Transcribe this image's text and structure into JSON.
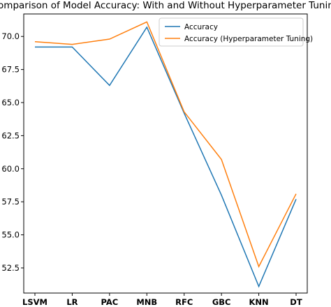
{
  "chart_data": {
    "type": "line",
    "title": "Comparison of Model Accuracy: With and Without Hyperparameter Tuning",
    "xlabel": "",
    "ylabel": "",
    "categories": [
      "LSVM",
      "LR",
      "PAC",
      "MNB",
      "RFC",
      "GBC",
      "KNN",
      "DT"
    ],
    "series": [
      {
        "name": "Accuracy",
        "color": "#1f77b4",
        "values": [
          69.2,
          69.2,
          66.3,
          70.7,
          64.2,
          58.0,
          51.1,
          57.7
        ]
      },
      {
        "name": "Accuracy (Hyperparameter Tuning)",
        "color": "#ff7f0e",
        "values": [
          69.6,
          69.4,
          69.8,
          71.1,
          64.3,
          60.7,
          52.6,
          58.1
        ]
      }
    ],
    "ylim": [
      50.6,
      71.7
    ],
    "yticks": [
      "52.5",
      "55.0",
      "57.5",
      "60.0",
      "62.5",
      "65.0",
      "67.5",
      "70.0"
    ],
    "grid": false,
    "legend_position": "top-right"
  }
}
